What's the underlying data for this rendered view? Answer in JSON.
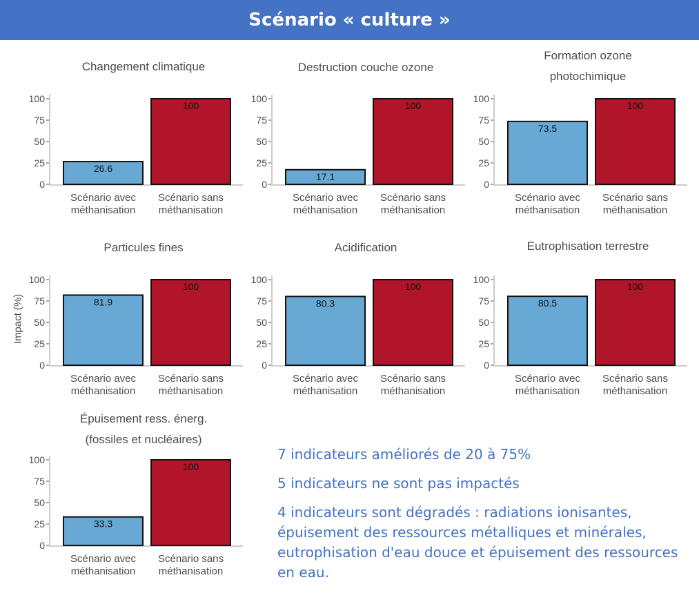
{
  "header": {
    "title": "Scénario « culture »"
  },
  "y_axis_label": "Impact (%)",
  "notes": [
    "7 indicateurs améliorés de 20 à 75%",
    "5 indicateurs ne sont pas impactés",
    "4 indicateurs sont dégradés : radiations ionisantes, épuisement des ressources métalliques et minérales, eutrophisation d'eau douce et épuisement des ressources en eau."
  ],
  "colors": {
    "avec": "#67a9d4",
    "sans": "#b0152a",
    "banner": "#4472c4",
    "notes": "#4472c4"
  },
  "chart_data": [
    {
      "type": "bar",
      "title": "Changement climatique",
      "categories": [
        "Scénario avec\nméthanisation",
        "Scénario sans\nméthanisation"
      ],
      "values": [
        26.6,
        100
      ],
      "labels": [
        "26.6",
        "100"
      ],
      "yticks": [
        0,
        25,
        50,
        75,
        100
      ],
      "ylim": [
        0,
        100
      ]
    },
    {
      "type": "bar",
      "title": "Destruction couche ozone",
      "categories": [
        "Scénario avec\nméthanisation",
        "Scénario sans\nméthanisation"
      ],
      "values": [
        17.1,
        100
      ],
      "labels": [
        "17.1",
        "100"
      ],
      "yticks": [
        0,
        25,
        50,
        75,
        100
      ],
      "ylim": [
        0,
        100
      ]
    },
    {
      "type": "bar",
      "title": "Formation ozone\nphotochimique",
      "categories": [
        "Scénario avec\nméthanisation",
        "Scénario sans\nméthanisation"
      ],
      "values": [
        73.5,
        100
      ],
      "labels": [
        "73.5",
        "100"
      ],
      "yticks": [
        0,
        25,
        50,
        75,
        100
      ],
      "ylim": [
        0,
        100
      ]
    },
    {
      "type": "bar",
      "title": "Particules fines",
      "categories": [
        "Scénario avec\nméthanisation",
        "Scénario sans\nméthanisation"
      ],
      "values": [
        81.9,
        100
      ],
      "labels": [
        "81.9",
        "100"
      ],
      "yticks": [
        0,
        25,
        50,
        75,
        100
      ],
      "ylim": [
        0,
        100
      ]
    },
    {
      "type": "bar",
      "title": "Acidification",
      "categories": [
        "Scénario avec\nméthanisation",
        "Scénario sans\nméthanisation"
      ],
      "values": [
        80.3,
        100
      ],
      "labels": [
        "80.3",
        "100"
      ],
      "yticks": [
        0,
        25,
        50,
        75,
        100
      ],
      "ylim": [
        0,
        100
      ]
    },
    {
      "type": "bar",
      "title": "Eutrophisation terrestre",
      "categories": [
        "Scénario avec\nméthanisation",
        "Scénario sans\nméthanisation"
      ],
      "values": [
        80.5,
        100
      ],
      "labels": [
        "80.5",
        "100"
      ],
      "yticks": [
        0,
        25,
        50,
        75,
        100
      ],
      "ylim": [
        0,
        100
      ]
    },
    {
      "type": "bar",
      "title": "Épuisement ress. énerg.\n(fossiles et nucléaires)",
      "categories": [
        "Scénario avec\nméthanisation",
        "Scénario sans\nméthanisation"
      ],
      "values": [
        33.3,
        100
      ],
      "labels": [
        "33.3",
        "100"
      ],
      "yticks": [
        0,
        25,
        50,
        75,
        100
      ],
      "ylim": [
        0,
        100
      ]
    }
  ]
}
